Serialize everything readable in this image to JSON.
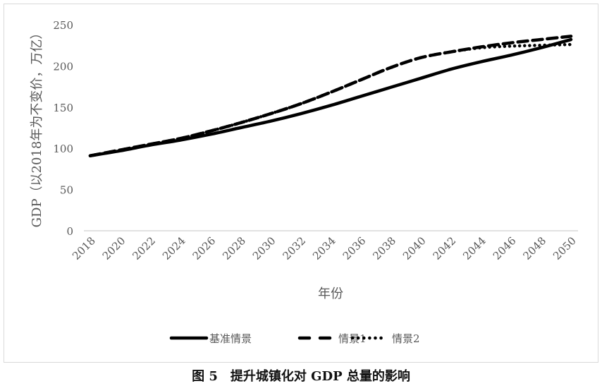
{
  "chart_data": {
    "type": "line",
    "title": "",
    "xlabel": "年份",
    "ylabel": "GDP（以2018年为不变价，万亿）",
    "ylim": [
      0,
      250
    ],
    "yticks": [
      "0",
      "50",
      "100",
      "150",
      "200",
      "250"
    ],
    "x": [
      2018,
      2020,
      2022,
      2024,
      2026,
      2028,
      2030,
      2032,
      2034,
      2036,
      2038,
      2040,
      2042,
      2044,
      2046,
      2048,
      2050
    ],
    "xticks": [
      "2018",
      "2020",
      "2022",
      "2024",
      "2026",
      "2028",
      "2030",
      "2032",
      "2034",
      "2036",
      "2038",
      "2040",
      "2042",
      "2044",
      "2046",
      "2048",
      "2050"
    ],
    "grid": false,
    "legend": "bottom",
    "series": [
      {
        "name": "基准情景",
        "style": "solid",
        "values": [
          91,
          97,
          104,
          110,
          117,
          125,
          133,
          142,
          152,
          163,
          174,
          185,
          196,
          205,
          213,
          222,
          232
        ]
      },
      {
        "name": "情景1",
        "style": "dashed",
        "values": [
          91,
          98,
          105,
          112,
          121,
          131,
          142,
          154,
          168,
          183,
          198,
          210,
          217,
          223,
          228,
          232,
          236
        ]
      },
      {
        "name": "情景2",
        "style": "dotted",
        "values": [
          91,
          98,
          105,
          112,
          121,
          131,
          142,
          154,
          168,
          183,
          198,
          210,
          217,
          222,
          224,
          225,
          226
        ]
      }
    ],
    "colors": {
      "line": "#000000",
      "axis": "#d9d9d9",
      "text": "#595959"
    }
  },
  "caption": "图 5　提升城镇化对 GDP 总量的影响"
}
